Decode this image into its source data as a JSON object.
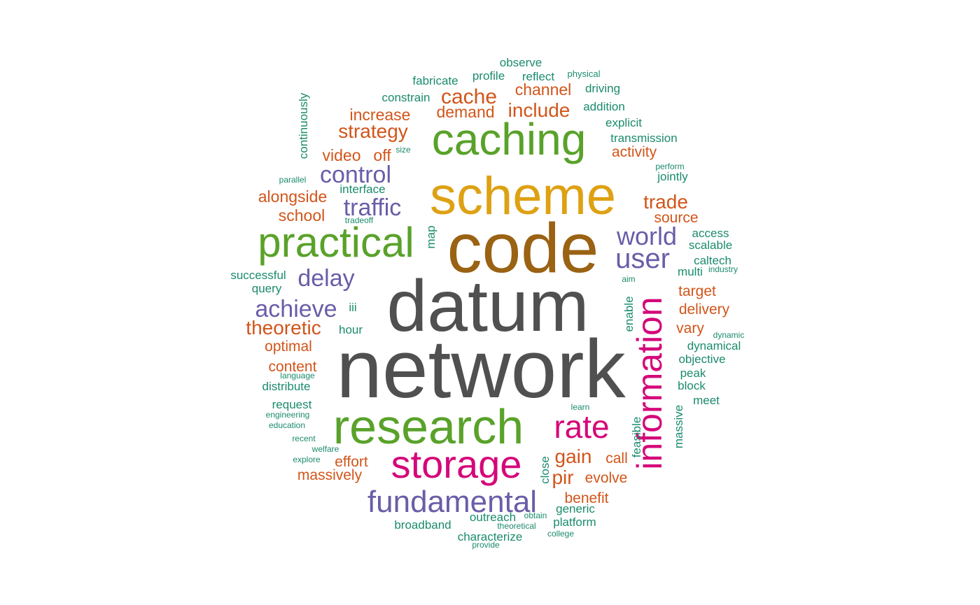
{
  "colors": {
    "dark_gray": "#505050",
    "brown": "#9a6213",
    "gold": "#dea113",
    "green": "#59a22a",
    "magenta": "#d5077a",
    "purple": "#6b5da8",
    "orange": "#d2551a",
    "teal": "#1b8b6d"
  },
  "words": [
    {
      "text": "network",
      "color": "dark_gray",
      "weight": 10
    },
    {
      "text": "datum",
      "color": "dark_gray",
      "weight": 9.5
    },
    {
      "text": "code",
      "color": "brown",
      "weight": 8
    },
    {
      "text": "scheme",
      "color": "gold",
      "weight": 7
    },
    {
      "text": "caching",
      "color": "green",
      "weight": 6
    },
    {
      "text": "research",
      "color": "green",
      "weight": 6
    },
    {
      "text": "practical",
      "color": "green",
      "weight": 5
    },
    {
      "text": "storage",
      "color": "magenta",
      "weight": 5
    },
    {
      "text": "information",
      "color": "magenta",
      "weight": 4.5
    },
    {
      "text": "rate",
      "color": "magenta",
      "weight": 4
    },
    {
      "text": "fundamental",
      "color": "purple",
      "weight": 3.5
    },
    {
      "text": "user",
      "color": "purple",
      "weight": 3.2
    },
    {
      "text": "world",
      "color": "purple",
      "weight": 2.8
    },
    {
      "text": "control",
      "color": "purple",
      "weight": 2.6
    },
    {
      "text": "traffic",
      "color": "purple",
      "weight": 2.6
    },
    {
      "text": "delay",
      "color": "purple",
      "weight": 2.6
    },
    {
      "text": "achieve",
      "color": "purple",
      "weight": 2.6
    },
    {
      "text": "cache",
      "color": "orange",
      "weight": 2.2
    },
    {
      "text": "include",
      "color": "orange",
      "weight": 2.2
    },
    {
      "text": "theoretic",
      "color": "orange",
      "weight": 2.2
    },
    {
      "text": "strategy",
      "color": "orange",
      "weight": 2.2
    },
    {
      "text": "trade",
      "color": "orange",
      "weight": 2.2
    },
    {
      "text": "gain",
      "color": "orange",
      "weight": 2.2
    },
    {
      "text": "pir",
      "color": "orange",
      "weight": 2.2
    },
    {
      "text": "channel",
      "color": "orange",
      "weight": 1.8
    },
    {
      "text": "demand",
      "color": "orange",
      "weight": 1.8
    },
    {
      "text": "increase",
      "color": "orange",
      "weight": 1.8
    },
    {
      "text": "alongside",
      "color": "orange",
      "weight": 1.8
    },
    {
      "text": "video",
      "color": "orange",
      "weight": 1.8
    },
    {
      "text": "off",
      "color": "orange",
      "weight": 1.8
    },
    {
      "text": "school",
      "color": "orange",
      "weight": 1.8
    },
    {
      "text": "source",
      "color": "orange",
      "weight": 1.8
    },
    {
      "text": "activity",
      "color": "orange",
      "weight": 1.8
    },
    {
      "text": "target",
      "color": "orange",
      "weight": 1.8
    },
    {
      "text": "delivery",
      "color": "orange",
      "weight": 1.8
    },
    {
      "text": "vary",
      "color": "orange",
      "weight": 1.8
    },
    {
      "text": "optimal",
      "color": "orange",
      "weight": 1.8
    },
    {
      "text": "content",
      "color": "orange",
      "weight": 1.8
    },
    {
      "text": "effort",
      "color": "orange",
      "weight": 1.8
    },
    {
      "text": "massively",
      "color": "orange",
      "weight": 1.8
    },
    {
      "text": "call",
      "color": "orange",
      "weight": 1.8
    },
    {
      "text": "evolve",
      "color": "orange",
      "weight": 1.8
    },
    {
      "text": "benefit",
      "color": "orange",
      "weight": 1.8
    },
    {
      "text": "observe",
      "color": "teal",
      "weight": 1.2
    },
    {
      "text": "fabricate",
      "color": "teal",
      "weight": 1.2
    },
    {
      "text": "profile",
      "color": "teal",
      "weight": 1.2
    },
    {
      "text": "reflect",
      "color": "teal",
      "weight": 1.2
    },
    {
      "text": "physical",
      "color": "teal",
      "weight": 0.8
    },
    {
      "text": "driving",
      "color": "teal",
      "weight": 1.2
    },
    {
      "text": "constrain",
      "color": "teal",
      "weight": 1.2
    },
    {
      "text": "addition",
      "color": "teal",
      "weight": 1.2
    },
    {
      "text": "continuously",
      "color": "teal",
      "weight": 1.2
    },
    {
      "text": "explicit",
      "color": "teal",
      "weight": 1.2
    },
    {
      "text": "transmission",
      "color": "teal",
      "weight": 1.2
    },
    {
      "text": "size",
      "color": "teal",
      "weight": 0.8
    },
    {
      "text": "perform",
      "color": "teal",
      "weight": 0.8
    },
    {
      "text": "jointly",
      "color": "teal",
      "weight": 1.2
    },
    {
      "text": "parallel",
      "color": "teal",
      "weight": 0.8
    },
    {
      "text": "interface",
      "color": "teal",
      "weight": 1.2
    },
    {
      "text": "tradeoff",
      "color": "teal",
      "weight": 0.8
    },
    {
      "text": "map",
      "color": "teal",
      "weight": 1.2
    },
    {
      "text": "access",
      "color": "teal",
      "weight": 1.2
    },
    {
      "text": "scalable",
      "color": "teal",
      "weight": 1.2
    },
    {
      "text": "caltech",
      "color": "teal",
      "weight": 1.2
    },
    {
      "text": "multi",
      "color": "teal",
      "weight": 1.2
    },
    {
      "text": "industry",
      "color": "teal",
      "weight": 0.8
    },
    {
      "text": "successful",
      "color": "teal",
      "weight": 1.2
    },
    {
      "text": "query",
      "color": "teal",
      "weight": 1.2
    },
    {
      "text": "aim",
      "color": "teal",
      "weight": 0.8
    },
    {
      "text": "iii",
      "color": "teal",
      "weight": 1.2
    },
    {
      "text": "enable",
      "color": "teal",
      "weight": 1.2
    },
    {
      "text": "hour",
      "color": "teal",
      "weight": 1.2
    },
    {
      "text": "dynamic",
      "color": "teal",
      "weight": 0.8
    },
    {
      "text": "dynamical",
      "color": "teal",
      "weight": 1.2
    },
    {
      "text": "objective",
      "color": "teal",
      "weight": 1.2
    },
    {
      "text": "language",
      "color": "teal",
      "weight": 0.8
    },
    {
      "text": "distribute",
      "color": "teal",
      "weight": 1.2
    },
    {
      "text": "peak",
      "color": "teal",
      "weight": 1.2
    },
    {
      "text": "block",
      "color": "teal",
      "weight": 1.2
    },
    {
      "text": "request",
      "color": "teal",
      "weight": 1.2
    },
    {
      "text": "meet",
      "color": "teal",
      "weight": 1.2
    },
    {
      "text": "learn",
      "color": "teal",
      "weight": 0.8
    },
    {
      "text": "engineering",
      "color": "teal",
      "weight": 0.8
    },
    {
      "text": "massive",
      "color": "teal",
      "weight": 1.2
    },
    {
      "text": "education",
      "color": "teal",
      "weight": 0.8
    },
    {
      "text": "feasible",
      "color": "teal",
      "weight": 1.2
    },
    {
      "text": "recent",
      "color": "teal",
      "weight": 0.8
    },
    {
      "text": "welfare",
      "color": "teal",
      "weight": 0.8
    },
    {
      "text": "explore",
      "color": "teal",
      "weight": 0.8
    },
    {
      "text": "close",
      "color": "teal",
      "weight": 1.2
    },
    {
      "text": "generic",
      "color": "teal",
      "weight": 1.2
    },
    {
      "text": "outreach",
      "color": "teal",
      "weight": 1.2
    },
    {
      "text": "obtain",
      "color": "teal",
      "weight": 0.8
    },
    {
      "text": "platform",
      "color": "teal",
      "weight": 1.2
    },
    {
      "text": "broadband",
      "color": "teal",
      "weight": 1.2
    },
    {
      "text": "theoretical",
      "color": "teal",
      "weight": 0.8
    },
    {
      "text": "characterize",
      "color": "teal",
      "weight": 1.2
    },
    {
      "text": "college",
      "color": "teal",
      "weight": 0.8
    },
    {
      "text": "provide",
      "color": "teal",
      "weight": 0.8
    }
  ]
}
